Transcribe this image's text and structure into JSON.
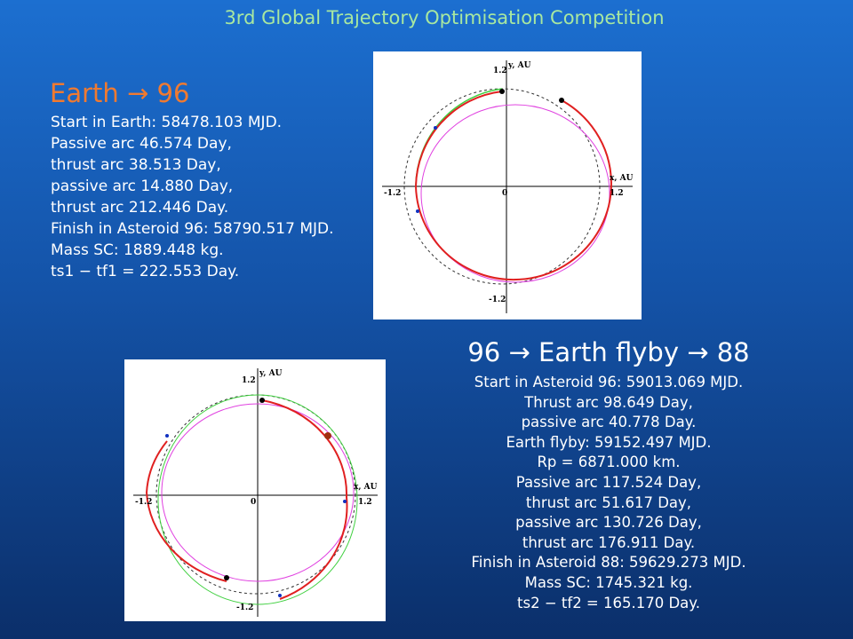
{
  "header": {
    "title": "3rd Global Trajectory Optimisation Competition"
  },
  "leg1": {
    "title": "Earth → 96",
    "lines": [
      "Start in Earth: 58478.103 MJD.",
      "Passive arc 46.574 Day,",
      "thrust arc 38.513 Day,",
      "passive arc 14.880 Day,",
      "thrust arc 212.446 Day.",
      "Finish in Asteroid 96: 58790.517 MJD.",
      "Mass SC: 1889.448 kg.",
      "ts1 − tf1 = 222.553 Day."
    ]
  },
  "plot1": {
    "y_label": "y, AU",
    "x_label": "x, AU",
    "y_top": "1.2",
    "y_bottom": "-1.2",
    "x_left": "-1.2",
    "x_right": "1.2",
    "origin": "0"
  },
  "leg2": {
    "title": "96 → Earth flyby → 88",
    "lines": [
      "Start in Asteroid 96: 59013.069 MJD.",
      "Thrust arc 98.649 Day,",
      "passive arc 40.778 Day.",
      "Earth flyby: 59152.497 MJD.",
      "Rp = 6871.000 km.",
      "Passive arc 117.524 Day,",
      "thrust arc 51.617 Day,",
      "passive arc 130.726 Day,",
      "thrust arc 176.911 Day.",
      "Finish in Asteroid 88: 59629.273 MJD.",
      "Mass SC: 1745.321 kg.",
      "ts2 − tf2 = 165.170 Day."
    ]
  },
  "plot2": {
    "y_label": "y, AU",
    "x_label": "x, AU",
    "y_top": "1.2",
    "y_bottom": "-1.2",
    "x_left": "-1.2",
    "x_right": "1.2",
    "origin": "0"
  }
}
